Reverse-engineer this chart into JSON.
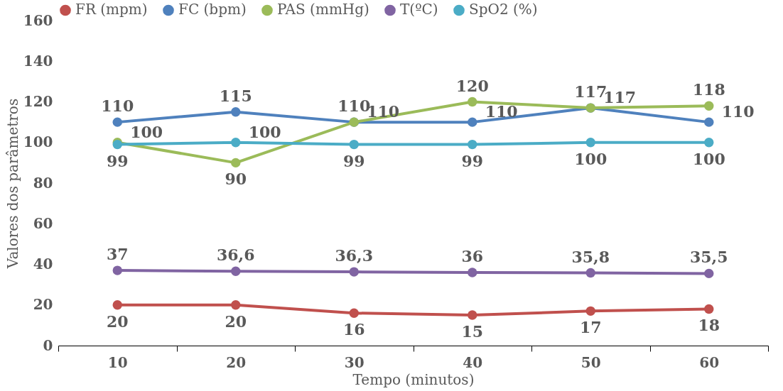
{
  "chart_data": {
    "type": "line",
    "xlabel": "Tempo (minutos)",
    "ylabel": "Valores dos parâmetros",
    "categories": [
      "10",
      "20",
      "30",
      "40",
      "50",
      "60"
    ],
    "ylim": [
      0,
      160
    ],
    "yticks": [
      0,
      20,
      40,
      60,
      80,
      100,
      120,
      140,
      160
    ],
    "grid": false,
    "legend": "top",
    "marker": "circle",
    "line_style": "solid",
    "series": [
      {
        "name": "FR (mpm)",
        "color": "#c0504d",
        "values": [
          20,
          20,
          16,
          15,
          17,
          18
        ],
        "value_labels": [
          "20",
          "20",
          "16",
          "15",
          "17",
          "18"
        ]
      },
      {
        "name": "FC (bpm)",
        "color": "#4f81bd",
        "values": [
          110,
          115,
          110,
          110,
          117,
          110
        ],
        "value_labels": [
          "110",
          "115",
          "110",
          "110",
          "117",
          "110"
        ]
      },
      {
        "name": "PAS (mmHg)",
        "color": "#9bbb59",
        "values": [
          100,
          90,
          110,
          120,
          117,
          118
        ],
        "value_labels": [
          "100",
          "90",
          "110",
          "120",
          "117",
          "118"
        ]
      },
      {
        "name": "T(ºC)",
        "color": "#8064a2",
        "values": [
          37,
          36.6,
          36.3,
          36,
          35.8,
          35.5
        ],
        "value_labels": [
          "37",
          "36,6",
          "36,3",
          "36",
          "35,8",
          "35,5"
        ]
      },
      {
        "name": "SpO2 (%)",
        "color": "#4bacc6",
        "values": [
          99,
          100,
          99,
          99,
          100,
          100
        ],
        "value_labels": [
          "99",
          "100",
          "99",
          "99",
          "100",
          "100"
        ]
      }
    ]
  }
}
